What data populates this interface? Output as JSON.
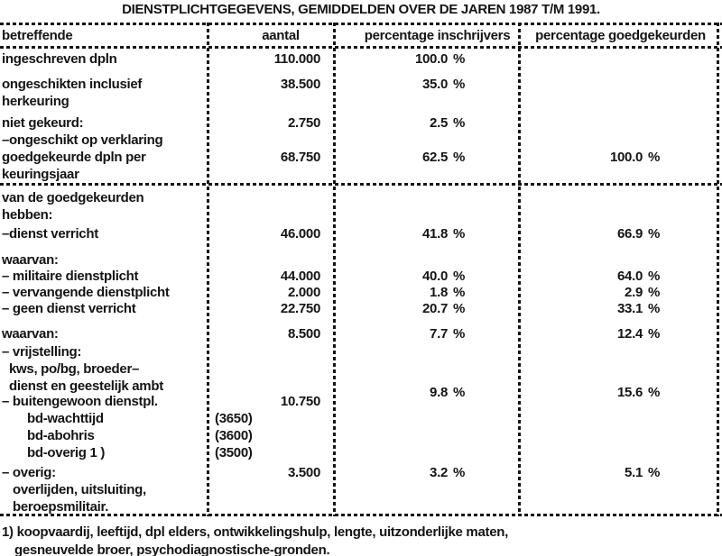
{
  "title": "DIENSTPLICHTGEGEVENS, GEMIDDELDEN OVER DE JAREN 1987 T/M 1991.",
  "table": {
    "headers": [
      "betreffende",
      "aantal",
      "percentage inschrijvers",
      "percentage goedgekeurden"
    ],
    "percent_sign": "%",
    "rows": [
      {
        "lines": [
          "ingeschreven dpln"
        ],
        "aantal": "110.000",
        "pct_inschrijvers": "100.0",
        "pct_goedgekeurden": ""
      },
      {
        "lines": [
          "ongeschikten inclusief",
          "herkeuring"
        ],
        "aantal": "38.500",
        "pct_inschrijvers": "35.0",
        "pct_goedgekeurden": ""
      },
      {
        "lines": [
          "niet gekeurd:",
          "–ongeschikt op verklaring"
        ],
        "aantal": "2.750",
        "pct_inschrijvers": "2.5",
        "pct_goedgekeurden": ""
      },
      {
        "lines": [
          "goedgekeurde dpln per",
          "keuringsjaar"
        ],
        "aantal": "68.750",
        "pct_inschrijvers": "62.5",
        "pct_goedgekeurden": "100.0"
      },
      {
        "lines": [
          "van de goedgekeurden",
          "hebben:"
        ],
        "aantal": "",
        "pct_inschrijvers": "",
        "pct_goedgekeurden": ""
      },
      {
        "lines": [
          "–dienst verricht"
        ],
        "aantal": "46.000",
        "pct_inschrijvers": "41.8",
        "pct_goedgekeurden": "66.9"
      },
      {
        "lines": [
          "waarvan:"
        ],
        "aantal": "",
        "pct_inschrijvers": "",
        "pct_goedgekeurden": ""
      },
      {
        "lines": [
          "– militaire dienstplicht"
        ],
        "aantal": "44.000",
        "pct_inschrijvers": "40.0",
        "pct_goedgekeurden": "64.0"
      },
      {
        "lines": [
          "– vervangende dienstplicht"
        ],
        "aantal": "2.000",
        "pct_inschrijvers": "1.8",
        "pct_goedgekeurden": "2.9"
      },
      {
        "lines": [
          "– geen dienst verricht"
        ],
        "aantal": "22.750",
        "pct_inschrijvers": "20.7",
        "pct_goedgekeurden": "33.1"
      },
      {
        "lines": [
          "waarvan:"
        ],
        "aantal": "8.500",
        "pct_inschrijvers": "7.7",
        "pct_goedgekeurden": "12.4"
      },
      {
        "lines": [
          "– vrijstelling:",
          "kws, po/bg, broeder–",
          "dienst en geestelijk ambt"
        ],
        "aantal": "",
        "pct_inschrijvers": "",
        "pct_goedgekeurden": ""
      },
      {
        "lines": [
          "– buitengewoon dienstpl."
        ],
        "aantal": "10.750",
        "pct_inschrijvers": "9.8",
        "pct_goedgekeurden": "15.6"
      },
      {
        "lines": [
          "bd-wachttijd"
        ],
        "aantal_left": "(3650)",
        "pct_inschrijvers": "",
        "pct_goedgekeurden": ""
      },
      {
        "lines": [
          "bd-abohris"
        ],
        "aantal_left": "(3600)",
        "pct_inschrijvers": "",
        "pct_goedgekeurden": ""
      },
      {
        "lines": [
          "bd-overig 1 )"
        ],
        "aantal_left": "(3500)",
        "pct_inschrijvers": "",
        "pct_goedgekeurden": ""
      },
      {
        "lines": [
          "– overig:",
          "overlijden, uitsluiting,",
          "beroepsmilitair."
        ],
        "aantal": "3.500",
        "pct_inschrijvers": "3.2",
        "pct_goedgekeurden": "5.1"
      }
    ]
  },
  "footnote": {
    "line1": "1) koopvaardij, leeftijd, dpl elders, ontwikkelingshulp, lengte, uitzonderlijke maten,",
    "line2": "gesneuvelde broer, psychodiagnostische-gronden."
  },
  "colors": {
    "ink": "#141414",
    "paper": "#ffffff"
  }
}
